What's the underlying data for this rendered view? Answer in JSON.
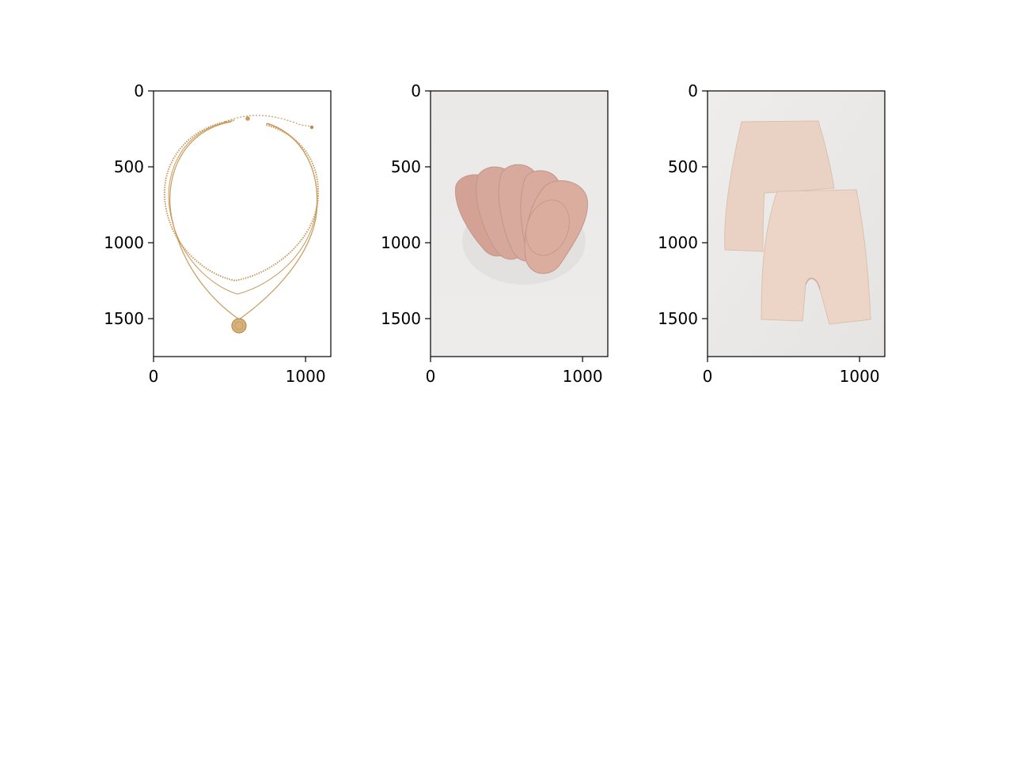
{
  "chart_data": [
    {
      "type": "image",
      "content": "gold multi-strand necklace",
      "xlim": [
        0,
        1166
      ],
      "ylim": [
        1750,
        0
      ],
      "xticks": [
        0,
        1000
      ],
      "yticks": [
        0,
        500,
        1000,
        1500
      ],
      "background": "#ffffff"
    },
    {
      "type": "image",
      "content": "five-pack nude liner socks",
      "xlim": [
        0,
        1166
      ],
      "ylim": [
        1750,
        0
      ],
      "xticks": [
        0,
        1000
      ],
      "yticks": [
        0,
        500,
        1000,
        1500
      ],
      "background": "#ebe9e8"
    },
    {
      "type": "image",
      "content": "two beige shapewear shorts",
      "xlim": [
        0,
        1166
      ],
      "ylim": [
        1750,
        0
      ],
      "xticks": [
        0,
        1000
      ],
      "yticks": [
        0,
        500,
        1000,
        1500
      ],
      "background": "#ecebea"
    }
  ],
  "colors": {
    "gold": "#c89a5c",
    "sock": "#d6a89b",
    "sock_dark": "#c3958a",
    "beige": "#e8cfbf",
    "beige_dark": "#d9bba8"
  }
}
